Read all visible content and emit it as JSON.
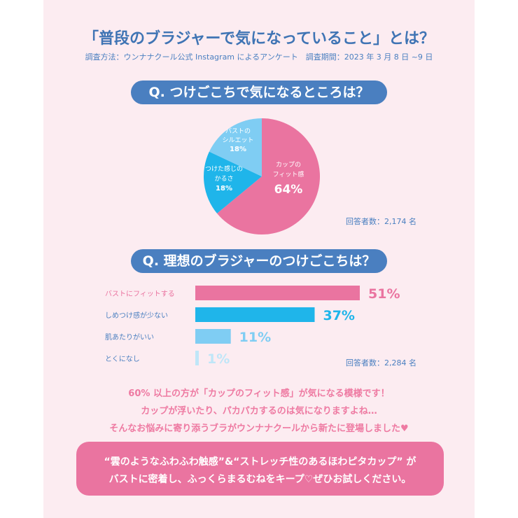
{
  "header": {
    "title": "「普段のブラジャーで気になっていること」とは？",
    "subtitle": "調査方法：ウンナナクール公式 Instagram によるアンケート　調査期間：2023 年 3 月 8 日 ~9 日"
  },
  "q1": {
    "label": "Q. つけごこちで気になるところは？",
    "respondents": "回答者数：2,174 名"
  },
  "q2": {
    "label": "Q. 理想のブラジャーのつけごこちは？",
    "respondents": "回答者数：2,284 名"
  },
  "chart_data": [
    {
      "type": "pie",
      "slices": [
        {
          "label_lines": [
            "カップの",
            "フィット感"
          ],
          "pct_label": "64%",
          "value": 64,
          "color": "#ea74a0"
        },
        {
          "label_lines": [
            "つけた感じの",
            "かるさ"
          ],
          "pct_label": "18%",
          "value": 18,
          "color": "#1fb5ea"
        },
        {
          "label_lines": [
            "バストの",
            "シルエット"
          ],
          "pct_label": "18%",
          "value": 18,
          "color": "#7fcdf3"
        }
      ]
    },
    {
      "type": "bar",
      "orientation": "horizontal",
      "categories": [
        "バストにフィットする",
        "しめつけ感が少ない",
        "肌あたりがいい",
        "とくになし"
      ],
      "values": [
        51,
        37,
        11,
        1
      ],
      "value_labels": [
        "51%",
        "37%",
        "11%",
        "1%"
      ],
      "colors": [
        "#ea74a0",
        "#1fb5ea",
        "#7fcdf3",
        "#bfe6f8"
      ],
      "label_colors": [
        "#ea74a0",
        "#4a7fc0",
        "#4a7fc0",
        "#4a7fc0"
      ]
    }
  ],
  "message": {
    "lines": [
      "60% 以上の方が「カップのフィット感」が気になる模様です！",
      "カップが浮いたり、パカパカするのは気になりますよね…",
      "そんなお悩みに寄り添うブラがウンナナクールから新たに登場しました♥"
    ]
  },
  "callout": {
    "lines": [
      "“雲のようなふわふわ触感”&“ストレッチ性のあるほわピタカップ” が",
      "バストに密着し、ふっくらまるむねをキープ♡ぜひお試しください。"
    ]
  }
}
